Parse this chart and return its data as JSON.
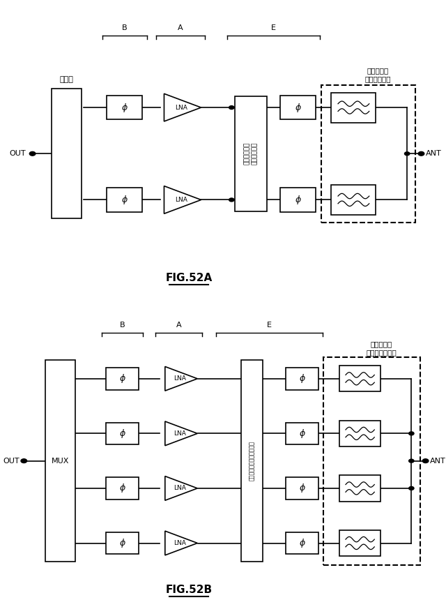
{
  "fig_width": 6.4,
  "fig_height": 8.83,
  "bg_color": "#ffffff",
  "line_color": "#000000",
  "box_fill": "#ffffff",
  "fig52a": {
    "title": "FIG.52A",
    "label_B": "B",
    "label_A": "A",
    "label_E": "E",
    "label_filter": "フィルタ／\nダイプレクサ",
    "label_coupler": "結合器",
    "label_switch": "スイッチング\nネットワーク",
    "label_out": "OUT",
    "label_ant": "ANT",
    "rows": 2
  },
  "fig52b": {
    "title": "FIG.52B",
    "label_B": "B",
    "label_A": "A",
    "label_E": "E",
    "label_filter": "フィルタ／\nマルチプレクサ",
    "label_mux": "MUX",
    "label_switch": "スイッチングネットワーク",
    "label_out": "OUT",
    "label_ant": "ANT",
    "rows": 4
  }
}
